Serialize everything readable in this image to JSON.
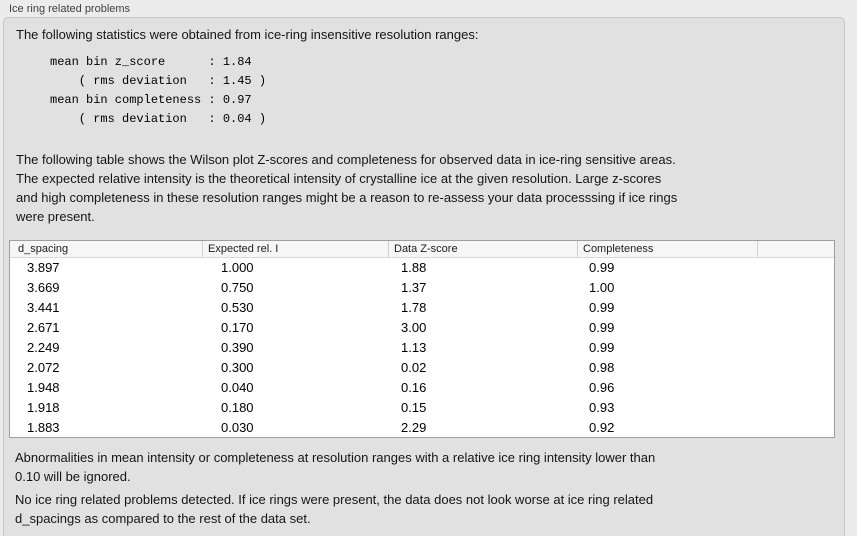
{
  "groupbox": {
    "title": "Ice ring related problems"
  },
  "intro": {
    "text": "The following statistics were obtained from ice-ring insensitive resolution ranges:"
  },
  "stats_block": {
    "lines": [
      "mean bin z_score      : 1.84",
      "    ( rms deviation   : 1.45 )",
      "mean bin completeness : 0.97",
      "    ( rms deviation   : 0.04 )"
    ]
  },
  "description": {
    "lines": [
      "The following table shows the Wilson plot Z-scores and completeness for observed data in ice-ring sensitive areas.",
      "The expected relative intensity is the theoretical intensity of crystalline ice at the given resolution. Large z-scores",
      "and high completeness in these resolution ranges might be a reason to re-assess your data processsing if ice rings",
      "were present."
    ]
  },
  "table": {
    "columns": [
      "d_spacing",
      "Expected rel. I",
      "Data Z-score",
      "Completeness"
    ],
    "rows": [
      [
        "3.897",
        "1.000",
        "1.88",
        "0.99"
      ],
      [
        "3.669",
        "0.750",
        "1.37",
        "1.00"
      ],
      [
        "3.441",
        "0.530",
        "1.78",
        "0.99"
      ],
      [
        "2.671",
        "0.170",
        "3.00",
        "0.99"
      ],
      [
        "2.249",
        "0.390",
        "1.13",
        "0.99"
      ],
      [
        "2.072",
        "0.300",
        "0.02",
        "0.98"
      ],
      [
        "1.948",
        "0.040",
        "0.16",
        "0.96"
      ],
      [
        "1.918",
        "0.180",
        "0.15",
        "0.93"
      ],
      [
        "1.883",
        "0.030",
        "2.29",
        "0.92"
      ]
    ]
  },
  "note_abnormalities": {
    "lines": [
      "Abnormalities in mean intensity or completeness at resolution ranges with a relative ice ring intensity lower than",
      "0.10 will be ignored."
    ]
  },
  "conclusion": {
    "lines": [
      "No ice ring related problems detected. If ice rings were present, the data does not look worse at ice ring related",
      "d_spacings as compared to the rest of the data set."
    ]
  },
  "colors": {
    "page_background": "#ececec",
    "panel_background": "#e1e1e1",
    "panel_border": "#c6c6c6",
    "table_border": "#9e9e9e",
    "table_header_background": "#f6f6f6",
    "table_body_background": "#ffffff",
    "text": "#151515"
  }
}
